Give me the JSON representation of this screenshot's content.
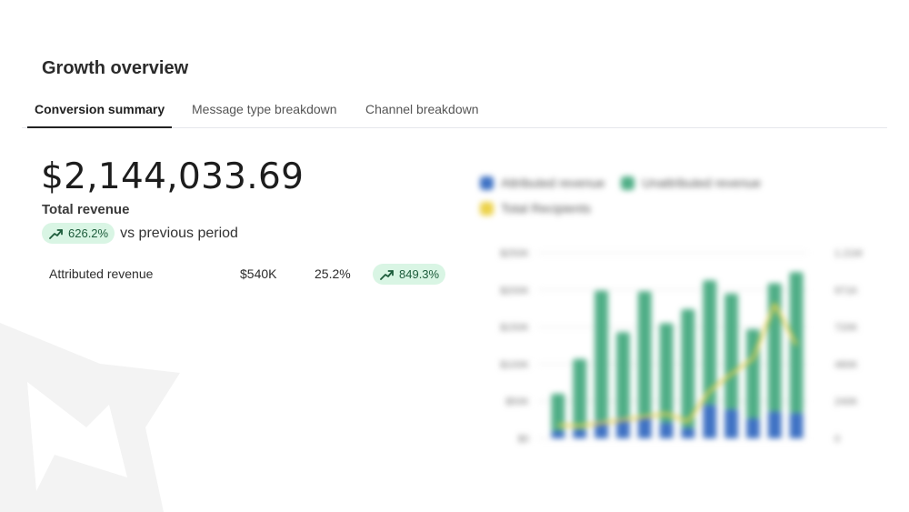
{
  "page": {
    "title": "Growth overview"
  },
  "tabs": [
    {
      "label": "Conversion summary",
      "active": true
    },
    {
      "label": "Message type breakdown",
      "active": false
    },
    {
      "label": "Channel breakdown",
      "active": false
    }
  ],
  "summary": {
    "total_value": "$2,144,033.69",
    "total_label": "Total revenue",
    "growth": {
      "icon": "trending-up-icon",
      "value": "626.2%",
      "suffix": "vs previous period"
    }
  },
  "attributed_row": {
    "name": "Attributed revenue",
    "amount": "$540K",
    "share": "25.2%",
    "growth": {
      "icon": "trending-up-icon",
      "value": "849.3%"
    }
  },
  "colors": {
    "accent_green_bg": "#d9f5e4",
    "accent_green_text": "#1d5c3b",
    "attributed": "#3f72c4",
    "unattributed": "#4fae86",
    "recipients": "#ecd24a"
  },
  "chart_data": {
    "type": "bar",
    "stacked": true,
    "legend_placement": "top-left",
    "series": [
      {
        "name": "Attributed revenue",
        "axis": "left",
        "values": [
          10,
          12,
          24,
          28,
          30,
          21,
          14,
          45,
          39,
          27,
          36,
          34
        ]
      },
      {
        "name": "Unattributed revenue",
        "axis": "left",
        "values": [
          50,
          95,
          175,
          115,
          168,
          134,
          160,
          168,
          156,
          120,
          173,
          190
        ]
      },
      {
        "name": "Total Recipients",
        "type": "line",
        "axis": "right",
        "values": [
          85,
          80,
          100,
          120,
          140,
          160,
          110,
          310,
          420,
          520,
          875,
          610
        ]
      }
    ],
    "y_left": {
      "ticks": [
        "$0",
        "$50K",
        "$100K",
        "$150K",
        "$200K",
        "$250K"
      ],
      "range": [
        0,
        250
      ]
    },
    "y_right": {
      "ticks": [
        "0",
        "240K",
        "480K",
        "720K",
        "971K",
        "1.21M"
      ]
    },
    "grid": true
  }
}
